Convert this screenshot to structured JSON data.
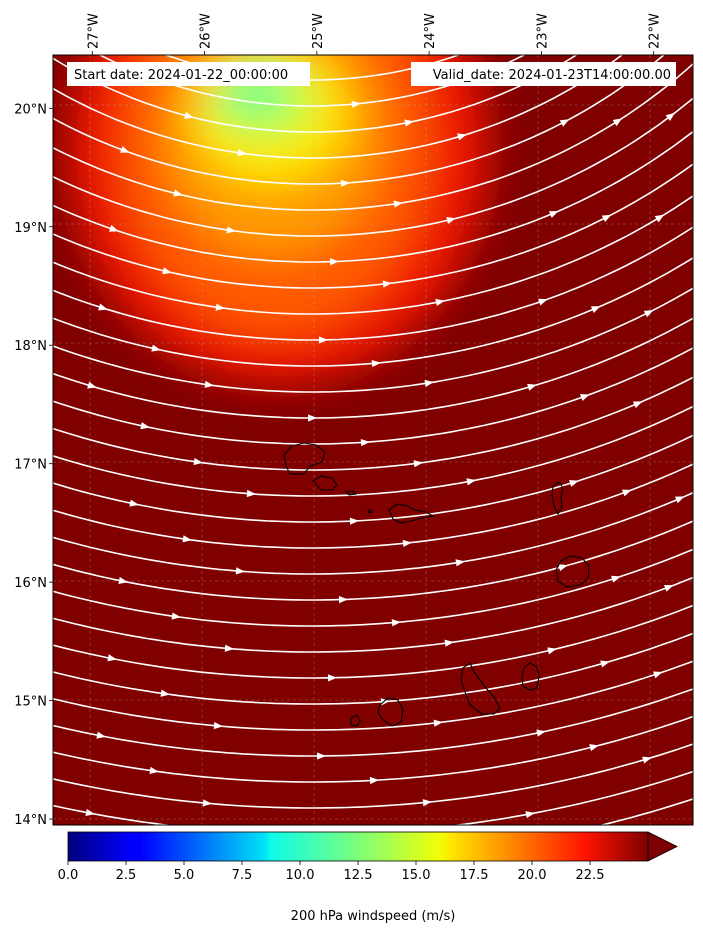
{
  "header": {
    "start_label": "Start date: 2024-01-22_00:00:00",
    "valid_label": "Valid_date: 2024-01-23T14:00:00.00"
  },
  "map": {
    "lon_range": [
      -27.35,
      -21.65
    ],
    "lat_range": [
      13.95,
      20.45
    ],
    "background_color": "#800000",
    "streamline_color": "#ffffff",
    "coastline_color": "#000000",
    "lon_ticks": [
      {
        "value": -27,
        "label": "27°W"
      },
      {
        "value": -26,
        "label": "26°W"
      },
      {
        "value": -25,
        "label": "25°W"
      },
      {
        "value": -24,
        "label": "24°W"
      },
      {
        "value": -23,
        "label": "23°W"
      },
      {
        "value": -22,
        "label": "22°W"
      }
    ],
    "lat_ticks": [
      {
        "value": 20,
        "label": "20°N"
      },
      {
        "value": 19,
        "label": "19°N"
      },
      {
        "value": 18,
        "label": "18°N"
      },
      {
        "value": 17,
        "label": "17°N"
      },
      {
        "value": 16,
        "label": "16°N"
      },
      {
        "value": 15,
        "label": "15°N"
      },
      {
        "value": 14,
        "label": "14°N"
      }
    ],
    "jet_core": {
      "lon": -25.6,
      "lat": 20.1,
      "min_speed": 10.5
    }
  },
  "colorbar": {
    "label": "200 hPa windspeed (m/s)",
    "min": 0,
    "max": 25,
    "extend": "max",
    "colormap": "jet",
    "ticks": [
      {
        "value": 0,
        "label": "0.0"
      },
      {
        "value": 2.5,
        "label": "2.5"
      },
      {
        "value": 5,
        "label": "5.0"
      },
      {
        "value": 7.5,
        "label": "7.5"
      },
      {
        "value": 10,
        "label": "10.0"
      },
      {
        "value": 12.5,
        "label": "12.5"
      },
      {
        "value": 15,
        "label": "15.0"
      },
      {
        "value": 17.5,
        "label": "17.5"
      },
      {
        "value": 20,
        "label": "20.0"
      },
      {
        "value": 22.5,
        "label": "22.5"
      }
    ]
  }
}
